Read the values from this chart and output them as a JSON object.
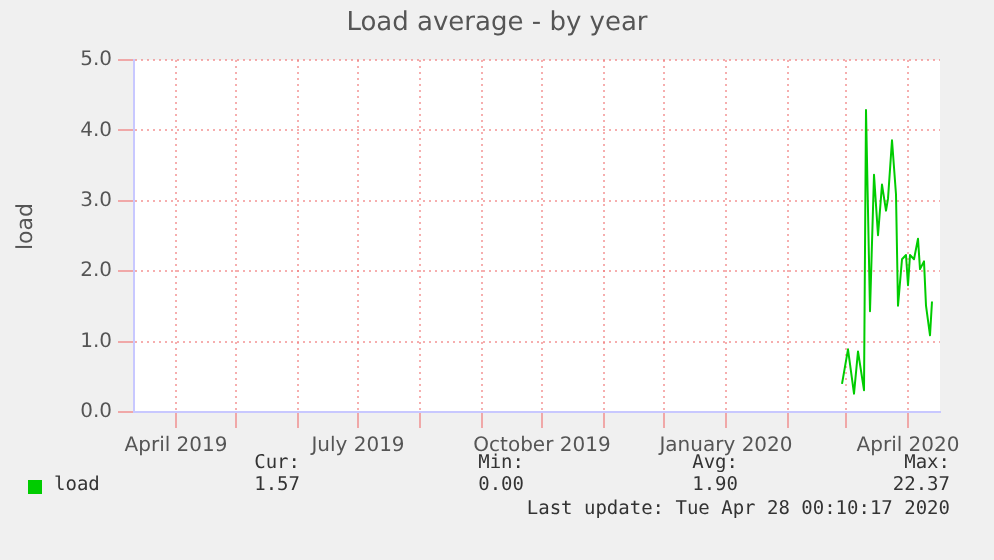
{
  "chart_data": {
    "type": "line",
    "title": "Load average - by year",
    "ylabel": "load",
    "x": [
      "2020-02-28",
      "2020-03-02",
      "2020-03-05",
      "2020-03-07",
      "2020-03-10",
      "2020-03-11",
      "2020-03-13",
      "2020-03-15",
      "2020-03-17",
      "2020-03-19",
      "2020-03-21",
      "2020-03-22",
      "2020-03-24",
      "2020-03-26",
      "2020-03-27",
      "2020-03-29",
      "2020-03-31",
      "2020-04-01",
      "2020-04-02",
      "2020-04-04",
      "2020-04-06",
      "2020-04-07",
      "2020-04-09",
      "2020-04-10",
      "2020-04-12",
      "2020-04-13"
    ],
    "series": [
      {
        "name": "load",
        "color": "#00cc00",
        "values": [
          0.4,
          0.89,
          0.26,
          0.86,
          0.31,
          4.29,
          1.43,
          3.37,
          2.51,
          3.23,
          2.86,
          3.03,
          3.86,
          3.09,
          1.51,
          2.17,
          2.23,
          1.8,
          2.23,
          2.17,
          2.46,
          2.03,
          2.14,
          1.51,
          1.09,
          1.57
        ]
      }
    ],
    "xlim": [
      "2019-03-11",
      "2020-04-17"
    ],
    "xticks": [
      {
        "value": "2019-04-01",
        "label": "April 2019"
      },
      {
        "value": "2019-05-01",
        "label": null
      },
      {
        "value": "2019-06-01",
        "label": null
      },
      {
        "value": "2019-07-01",
        "label": "July 2019"
      },
      {
        "value": "2019-08-01",
        "label": null
      },
      {
        "value": "2019-09-01",
        "label": null
      },
      {
        "value": "2019-10-01",
        "label": "October 2019"
      },
      {
        "value": "2019-11-01",
        "label": null
      },
      {
        "value": "2019-12-01",
        "label": null
      },
      {
        "value": "2020-01-01",
        "label": "January 2020"
      },
      {
        "value": "2020-02-01",
        "label": null
      },
      {
        "value": "2020-03-01",
        "label": null
      },
      {
        "value": "2020-04-01",
        "label": "April 2020"
      }
    ],
    "ylim": [
      0,
      5
    ],
    "yticks": [
      {
        "value": 0,
        "label": "0.0"
      },
      {
        "value": 1,
        "label": "1.0"
      },
      {
        "value": 2,
        "label": "2.0"
      },
      {
        "value": 3,
        "label": "3.0"
      },
      {
        "value": 4,
        "label": "4.0"
      },
      {
        "value": 5,
        "label": "5.0"
      }
    ],
    "grid": true,
    "legend": "bottom left",
    "marker": "none",
    "line_style": "solid",
    "annotations": [
      "Cur:",
      "Min:",
      "Avg:",
      "Max:",
      "1.57",
      "0.00",
      "1.90",
      "22.37",
      "Last update: Tue Apr 28 00:10:17 2020"
    ]
  }
}
